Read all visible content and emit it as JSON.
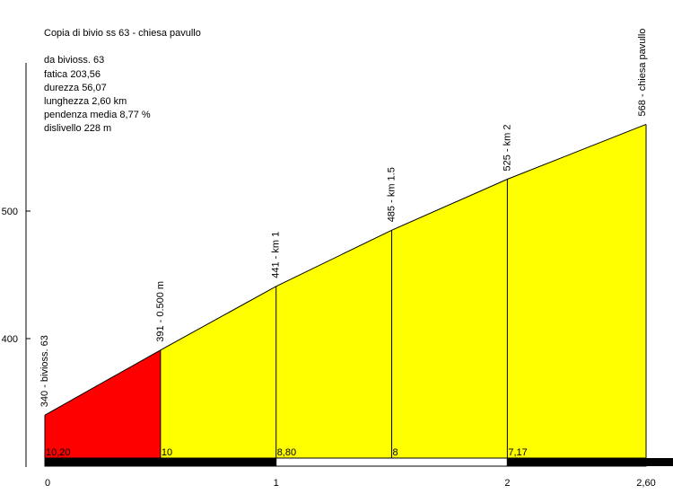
{
  "title": "Copia di bivio ss 63 - chiesa pavullo",
  "stats": [
    "da bivioss. 63",
    "fatica 203,56",
    "durezza 56,07",
    "lunghezza 2,60 km",
    "pendenza media 8,77 %",
    "dislivello 228 m"
  ],
  "colors": {
    "steep": "#ff0000",
    "normal": "#ffff00",
    "outline": "#000000",
    "bar_dark": "#000000",
    "bar_light": "#ffffff"
  },
  "chart_data": {
    "type": "area",
    "title": "Copia di bivio ss 63 - chiesa pavullo",
    "x_unit": "km",
    "y_unit": "m",
    "xlim": [
      0,
      2.6
    ],
    "ylim": [
      300,
      630
    ],
    "x_ticks": [
      0,
      1,
      2,
      2.6
    ],
    "x_tick_labels": [
      "0",
      "1",
      "2",
      "2,60"
    ],
    "y_ticks": [
      400,
      500
    ],
    "y_tick_labels": [
      "400",
      "500"
    ],
    "grid": false,
    "points": [
      {
        "x": 0,
        "y": 340,
        "label": "340 - bivioss. 63"
      },
      {
        "x": 0.5,
        "y": 391,
        "label": "391 - 0.500 m"
      },
      {
        "x": 1,
        "y": 441,
        "label": "441 - km 1"
      },
      {
        "x": 1.5,
        "y": 485,
        "label": "485 - km 1.5"
      },
      {
        "x": 2,
        "y": 525,
        "label": "525 - km 2"
      },
      {
        "x": 2.6,
        "y": 568,
        "label": "568 - chiesa pavullo"
      }
    ],
    "segments": [
      {
        "from": 0,
        "to": 0.5,
        "gradient_label": "10,20",
        "color": "#ff0000"
      },
      {
        "from": 0.5,
        "to": 1,
        "gradient_label": "10",
        "color": "#ffff00"
      },
      {
        "from": 1,
        "to": 1.5,
        "gradient_label": "8,80",
        "color": "#ffff00"
      },
      {
        "from": 1.5,
        "to": 2,
        "gradient_label": "8",
        "color": "#ffff00"
      },
      {
        "from": 2,
        "to": 2.6,
        "gradient_label": "7,17",
        "color": "#ffff00"
      }
    ],
    "km_bar": [
      {
        "from": 0,
        "to": 1,
        "color": "#000000"
      },
      {
        "from": 1,
        "to": 2,
        "color": "#ffffff"
      },
      {
        "from": 2,
        "to": 2.6,
        "color": "#000000"
      }
    ]
  }
}
